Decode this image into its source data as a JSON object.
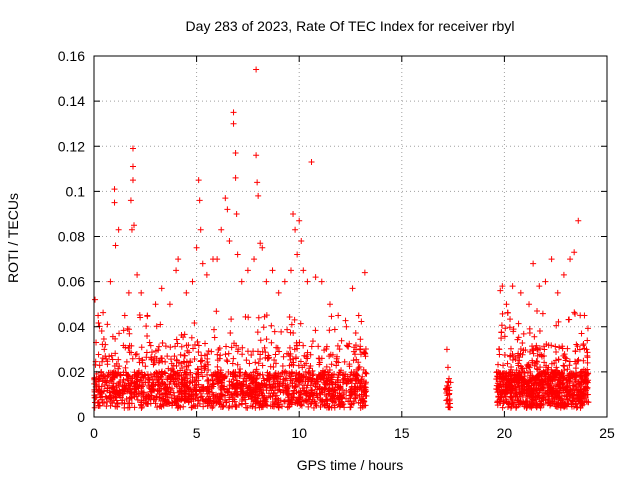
{
  "chart_data": {
    "type": "scatter",
    "title": "Day 283 of 2023, Rate Of TEC Index for receiver rbyl",
    "xlabel": "GPS time / hours",
    "ylabel": "ROTI / TECUs",
    "xlim": [
      0,
      25
    ],
    "ylim": [
      0,
      0.16
    ],
    "xticks": [
      "0",
      "5",
      "10",
      "15",
      "20",
      "25"
    ],
    "yticks": [
      "0",
      "0.02",
      "0.04",
      "0.06",
      "0.08",
      "0.1",
      "0.12",
      "0.14",
      "0.16"
    ],
    "grid": true,
    "marker": "+",
    "marker_color": "#ff0000",
    "series": [
      {
        "name": "ROTI",
        "points": [
          [
            0.05,
            0.052
          ],
          [
            0.1,
            0.033
          ],
          [
            0.2,
            0.045
          ],
          [
            0.5,
            0.03
          ],
          [
            0.8,
            0.06
          ],
          [
            1.0,
            0.101
          ],
          [
            1.0,
            0.095
          ],
          [
            1.05,
            0.076
          ],
          [
            1.2,
            0.083
          ],
          [
            1.5,
            0.045
          ],
          [
            1.7,
            0.055
          ],
          [
            1.8,
            0.096
          ],
          [
            1.85,
            0.083
          ],
          [
            1.9,
            0.119
          ],
          [
            1.9,
            0.111
          ],
          [
            1.9,
            0.105
          ],
          [
            1.95,
            0.085
          ],
          [
            2.1,
            0.063
          ],
          [
            2.3,
            0.055
          ],
          [
            2.6,
            0.045
          ],
          [
            3.0,
            0.05
          ],
          [
            3.3,
            0.057
          ],
          [
            3.7,
            0.05
          ],
          [
            4.0,
            0.065
          ],
          [
            4.1,
            0.07
          ],
          [
            4.5,
            0.055
          ],
          [
            4.8,
            0.06
          ],
          [
            5.0,
            0.075
          ],
          [
            5.1,
            0.105
          ],
          [
            5.15,
            0.096
          ],
          [
            5.2,
            0.083
          ],
          [
            5.3,
            0.068
          ],
          [
            5.5,
            0.063
          ],
          [
            5.8,
            0.07
          ],
          [
            6.0,
            0.07
          ],
          [
            6.2,
            0.083
          ],
          [
            6.4,
            0.097
          ],
          [
            6.5,
            0.092
          ],
          [
            6.6,
            0.078
          ],
          [
            6.8,
            0.135
          ],
          [
            6.8,
            0.13
          ],
          [
            6.9,
            0.117
          ],
          [
            6.9,
            0.106
          ],
          [
            6.95,
            0.09
          ],
          [
            7.0,
            0.072
          ],
          [
            7.2,
            0.06
          ],
          [
            7.5,
            0.065
          ],
          [
            7.8,
            0.07
          ],
          [
            7.9,
            0.154
          ],
          [
            7.9,
            0.116
          ],
          [
            7.95,
            0.104
          ],
          [
            8.0,
            0.098
          ],
          [
            8.1,
            0.077
          ],
          [
            8.2,
            0.075
          ],
          [
            8.4,
            0.06
          ],
          [
            8.7,
            0.065
          ],
          [
            9.0,
            0.055
          ],
          [
            9.3,
            0.06
          ],
          [
            9.6,
            0.065
          ],
          [
            9.7,
            0.09
          ],
          [
            9.8,
            0.083
          ],
          [
            9.9,
            0.072
          ],
          [
            10.0,
            0.087
          ],
          [
            10.1,
            0.078
          ],
          [
            10.2,
            0.065
          ],
          [
            10.4,
            0.06
          ],
          [
            10.6,
            0.113
          ],
          [
            10.8,
            0.062
          ],
          [
            11.1,
            0.06
          ],
          [
            11.5,
            0.05
          ],
          [
            11.9,
            0.045
          ],
          [
            12.3,
            0.04
          ],
          [
            12.6,
            0.057
          ],
          [
            12.9,
            0.045
          ],
          [
            13.2,
            0.064
          ],
          [
            17.2,
            0.03
          ],
          [
            17.25,
            0.022
          ],
          [
            17.3,
            0.017
          ],
          [
            17.3,
            0.01
          ],
          [
            17.35,
            0.006
          ],
          [
            19.8,
            0.056
          ],
          [
            19.9,
            0.058
          ],
          [
            20.1,
            0.05
          ],
          [
            20.4,
            0.058
          ],
          [
            20.8,
            0.055
          ],
          [
            21.2,
            0.05
          ],
          [
            21.4,
            0.068
          ],
          [
            21.7,
            0.058
          ],
          [
            22.0,
            0.06
          ],
          [
            22.3,
            0.07
          ],
          [
            22.6,
            0.055
          ],
          [
            22.9,
            0.063
          ],
          [
            23.2,
            0.07
          ],
          [
            23.4,
            0.073
          ],
          [
            23.6,
            0.087
          ],
          [
            23.9,
            0.045
          ],
          [
            24.0,
            0.03
          ]
        ]
      }
    ]
  }
}
